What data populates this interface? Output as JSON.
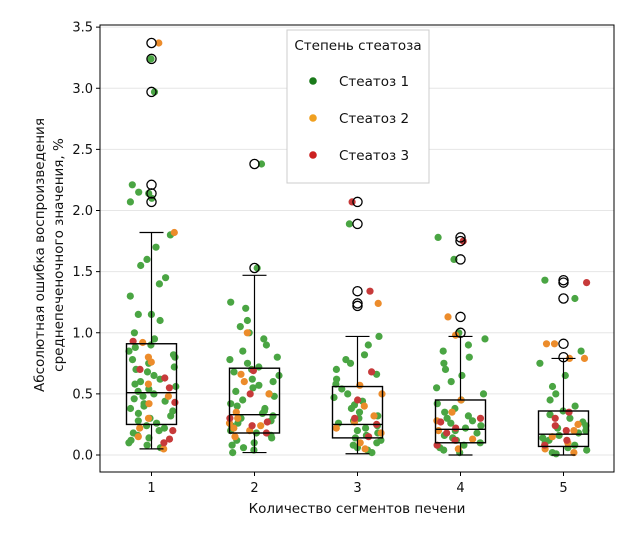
{
  "chart_data": {
    "type": "box-strip",
    "title": "",
    "xlabel": "Количество сегментов печени",
    "ylabel_line1": "Абсолютная ошибка воспроизведения",
    "ylabel_line2": "среднепеченочного значения, %",
    "ylim": [
      -0.15,
      3.5
    ],
    "yticks": [
      0.0,
      0.5,
      1.0,
      1.5,
      2.0,
      2.5,
      3.0,
      3.5
    ],
    "ytick_labels": [
      "0.0",
      "0.5",
      "1.0",
      "1.5",
      "2.0",
      "2.5",
      "3.0",
      "3.5"
    ],
    "categories": [
      "1",
      "2",
      "3",
      "4",
      "5"
    ],
    "grid": true,
    "legend": {
      "title": "Степень стеатоза",
      "placement": "top-center",
      "entries": [
        {
          "label": "Стеатоз 1",
          "color": "#1a7a1a"
        },
        {
          "label": "Стеатоз 2",
          "color": "#f0a020"
        },
        {
          "label": "Стеатоз 3",
          "color": "#cc2020"
        }
      ]
    },
    "colors": {
      "g1": "#4aa543",
      "g2": "#ec8c2b",
      "g3": "#c73a3a",
      "box": "#000000",
      "grid": "#e6e6e6"
    },
    "boxes": [
      {
        "category": "1",
        "q1": 0.25,
        "median": 0.51,
        "q3": 0.91,
        "whisker_low": 0.05,
        "whisker_high": 1.82
      },
      {
        "category": "2",
        "q1": 0.18,
        "median": 0.33,
        "q3": 0.71,
        "whisker_low": 0.02,
        "whisker_high": 1.47
      },
      {
        "category": "3",
        "q1": 0.14,
        "median": 0.25,
        "q3": 0.56,
        "whisker_low": 0.01,
        "whisker_high": 0.97
      },
      {
        "category": "4",
        "q1": 0.1,
        "median": 0.21,
        "q3": 0.45,
        "whisker_low": 0.0,
        "whisker_high": 0.97
      },
      {
        "category": "5",
        "q1": 0.07,
        "median": 0.17,
        "q3": 0.36,
        "whisker_low": 0.0,
        "whisker_high": 0.79
      }
    ],
    "outliers": [
      {
        "category": "1",
        "values": [
          3.37,
          3.24,
          2.97,
          2.21,
          2.14,
          2.07
        ]
      },
      {
        "category": "2",
        "values": [
          2.38,
          1.53
        ]
      },
      {
        "category": "3",
        "values": [
          2.07,
          1.89,
          1.34,
          1.24,
          1.22
        ]
      },
      {
        "category": "4",
        "values": [
          1.78,
          1.75,
          1.6,
          1.13,
          1.0
        ]
      },
      {
        "category": "5",
        "values": [
          1.43,
          1.41,
          1.28,
          0.91,
          0.8
        ]
      }
    ],
    "points": [
      {
        "category": "1",
        "group": 1,
        "values": [
          3.24,
          2.97,
          2.21,
          2.15,
          2.14,
          2.1,
          2.07,
          1.8,
          1.7,
          1.6,
          1.55,
          1.45,
          1.4,
          1.3,
          1.15,
          1.15,
          1.1,
          1.0,
          0.95,
          0.9,
          0.88,
          0.85,
          0.82,
          0.8,
          0.78,
          0.75,
          0.72,
          0.7,
          0.68,
          0.65,
          0.62,
          0.6,
          0.58,
          0.56,
          0.54,
          0.52,
          0.5,
          0.48,
          0.46,
          0.44,
          0.42,
          0.4,
          0.38,
          0.36,
          0.34,
          0.32,
          0.3,
          0.28,
          0.26,
          0.24,
          0.22,
          0.2,
          0.18,
          0.16,
          0.14,
          0.12,
          0.1,
          0.08,
          0.06
        ]
      },
      {
        "category": "1",
        "group": 2,
        "values": [
          3.37,
          1.82,
          0.92,
          0.8,
          0.76,
          0.58,
          0.48,
          0.42,
          0.3,
          0.22,
          0.15,
          0.05
        ]
      },
      {
        "category": "1",
        "group": 3,
        "values": [
          0.93,
          0.7,
          0.63,
          0.55,
          0.43,
          0.2,
          0.13,
          0.1
        ]
      },
      {
        "category": "2",
        "group": 1,
        "values": [
          2.38,
          1.53,
          1.25,
          1.2,
          1.1,
          1.05,
          1.0,
          0.95,
          0.9,
          0.85,
          0.8,
          0.78,
          0.75,
          0.72,
          0.7,
          0.68,
          0.65,
          0.62,
          0.6,
          0.57,
          0.55,
          0.52,
          0.5,
          0.48,
          0.45,
          0.42,
          0.4,
          0.38,
          0.36,
          0.34,
          0.32,
          0.3,
          0.28,
          0.26,
          0.24,
          0.22,
          0.2,
          0.18,
          0.16,
          0.14,
          0.12,
          0.1,
          0.08,
          0.06,
          0.04,
          0.02
        ]
      },
      {
        "category": "2",
        "group": 2,
        "values": [
          1.0,
          0.66,
          0.6,
          0.5,
          0.35,
          0.3,
          0.26,
          0.24,
          0.22,
          0.2,
          0.15
        ]
      },
      {
        "category": "2",
        "group": 3,
        "values": [
          0.69,
          0.5,
          0.3,
          0.27,
          0.24,
          0.18
        ]
      },
      {
        "category": "3",
        "group": 1,
        "values": [
          1.89,
          0.97,
          0.9,
          0.82,
          0.78,
          0.75,
          0.7,
          0.66,
          0.62,
          0.58,
          0.54,
          0.5,
          0.47,
          0.44,
          0.41,
          0.38,
          0.35,
          0.32,
          0.3,
          0.28,
          0.26,
          0.24,
          0.22,
          0.2,
          0.18,
          0.16,
          0.14,
          0.12,
          0.1,
          0.08,
          0.06,
          0.04,
          0.02
        ]
      },
      {
        "category": "3",
        "group": 2,
        "values": [
          1.24,
          0.57,
          0.5,
          0.4,
          0.32,
          0.27,
          0.22,
          0.18,
          0.1,
          0.05
        ]
      },
      {
        "category": "3",
        "group": 3,
        "values": [
          2.07,
          1.34,
          0.68,
          0.45,
          0.3,
          0.25,
          0.15
        ]
      },
      {
        "category": "4",
        "group": 1,
        "values": [
          1.78,
          1.6,
          1.0,
          0.95,
          0.9,
          0.85,
          0.8,
          0.75,
          0.7,
          0.65,
          0.6,
          0.55,
          0.5,
          0.45,
          0.42,
          0.38,
          0.35,
          0.32,
          0.3,
          0.28,
          0.26,
          0.24,
          0.22,
          0.2,
          0.18,
          0.16,
          0.14,
          0.12,
          0.1,
          0.08,
          0.06,
          0.04,
          0.02
        ]
      },
      {
        "category": "4",
        "group": 2,
        "values": [
          1.13,
          0.98,
          0.45,
          0.35,
          0.28,
          0.2,
          0.13,
          0.05
        ]
      },
      {
        "category": "4",
        "group": 3,
        "values": [
          1.75,
          0.3,
          0.27,
          0.22,
          0.18,
          0.12,
          0.08
        ]
      },
      {
        "category": "5",
        "group": 1,
        "values": [
          1.43,
          1.28,
          0.85,
          0.75,
          0.65,
          0.56,
          0.5,
          0.45,
          0.4,
          0.36,
          0.33,
          0.3,
          0.27,
          0.24,
          0.22,
          0.2,
          0.18,
          0.16,
          0.14,
          0.12,
          0.1,
          0.08,
          0.06,
          0.04,
          0.02,
          0.01
        ]
      },
      {
        "category": "5",
        "group": 2,
        "values": [
          0.91,
          0.91,
          0.79,
          0.79,
          0.25,
          0.2,
          0.15,
          0.1,
          0.05,
          0.02
        ]
      },
      {
        "category": "5",
        "group": 3,
        "values": [
          1.41,
          0.35,
          0.3,
          0.24,
          0.2,
          0.12,
          0.08
        ]
      }
    ]
  }
}
